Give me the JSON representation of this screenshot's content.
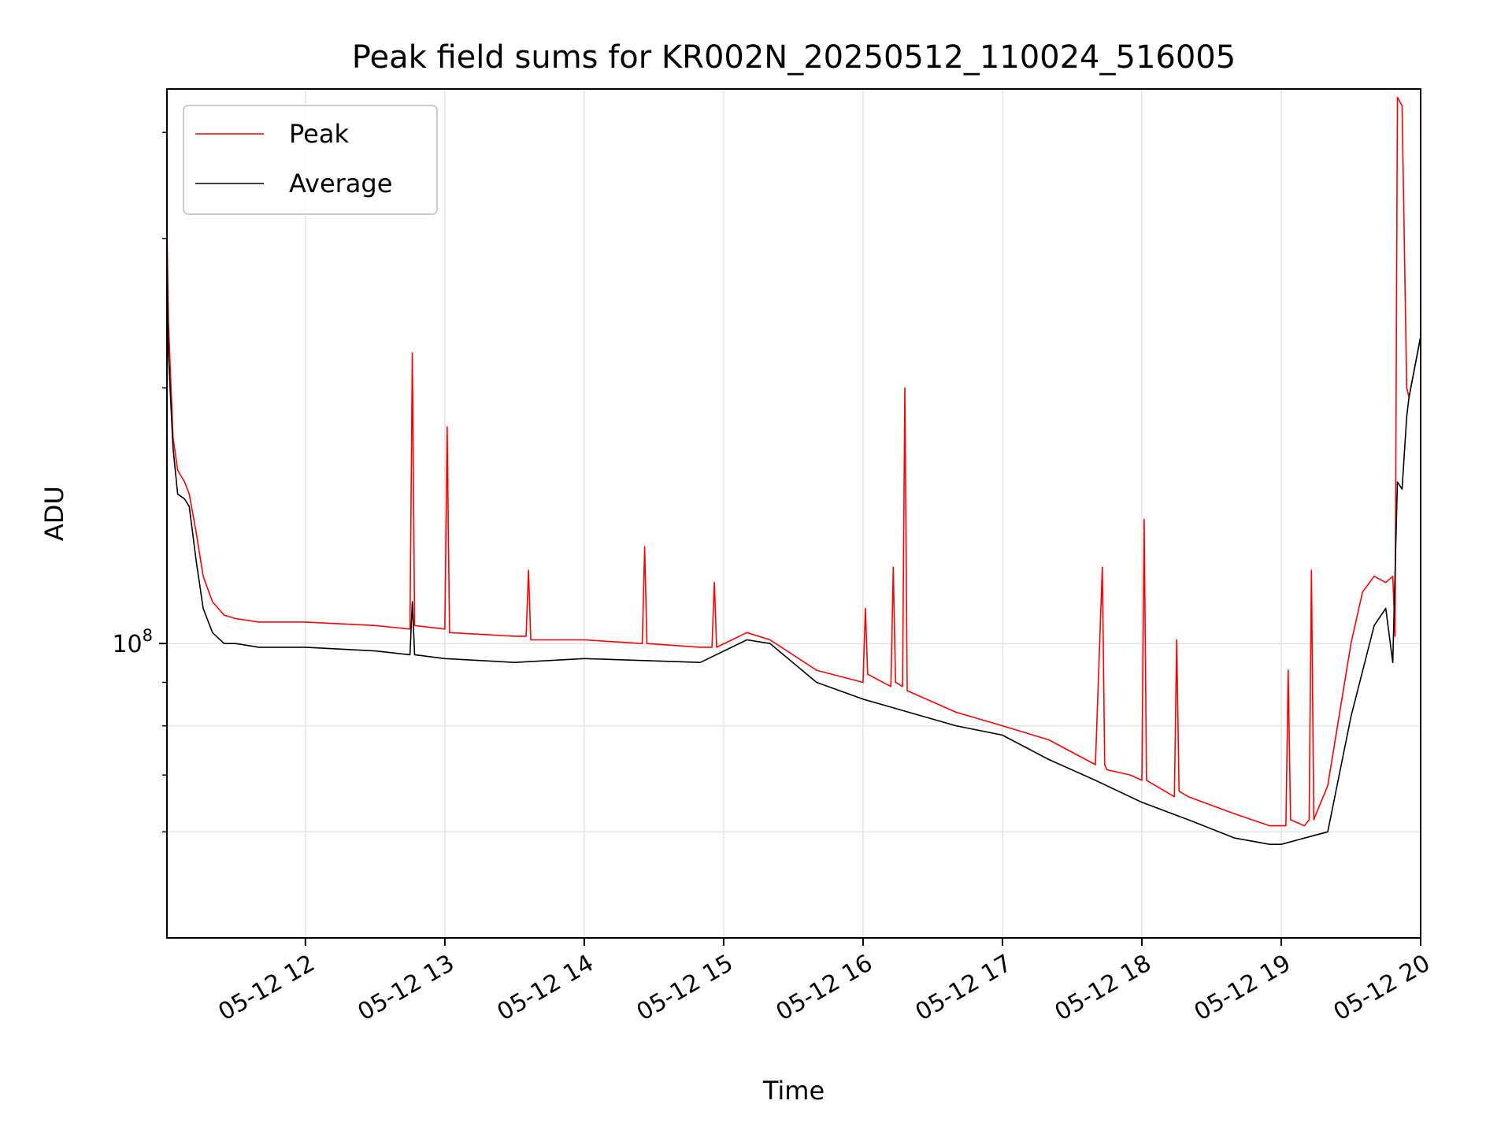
{
  "chart_data": {
    "type": "line",
    "title": "Peak field sums for KR002N_20250512_110024_516005",
    "xlabel": "Time",
    "ylabel": "ADU",
    "yscale": "log",
    "ylim": [
      45000000,
      450000000
    ],
    "xlim": [
      "2025-05-12 11:00:24",
      "2025-05-12 20:00:00"
    ],
    "x_ticks": [
      {
        "value": "2025-05-12 12:00",
        "label": "05-12 12"
      },
      {
        "value": "2025-05-12 13:00",
        "label": "05-12 13"
      },
      {
        "value": "2025-05-12 14:00",
        "label": "05-12 14"
      },
      {
        "value": "2025-05-12 15:00",
        "label": "05-12 15"
      },
      {
        "value": "2025-05-12 16:00",
        "label": "05-12 16"
      },
      {
        "value": "2025-05-12 17:00",
        "label": "05-12 17"
      },
      {
        "value": "2025-05-12 18:00",
        "label": "05-12 18"
      },
      {
        "value": "2025-05-12 19:00",
        "label": "05-12 19"
      },
      {
        "value": "2025-05-12 20:00",
        "label": "05-12 20"
      }
    ],
    "y_major_tick": {
      "value": 100000000,
      "label_base": "10",
      "label_exp": "8"
    },
    "y_minor_ticks": [
      60000000,
      70000000,
      80000000,
      90000000,
      200000000,
      300000000,
      400000000
    ],
    "y_minor_gridlines": [
      60000000,
      80000000
    ],
    "grid": true,
    "legend": "upper left",
    "series": [
      {
        "name": "Peak",
        "color": "#ff0000",
        "x": [
          "2025-05-12 11:00",
          "2025-05-12 11:01",
          "2025-05-12 11:03",
          "2025-05-12 11:05",
          "2025-05-12 11:08",
          "2025-05-12 11:10",
          "2025-05-12 11:13",
          "2025-05-12 11:16",
          "2025-05-12 11:20",
          "2025-05-12 11:25",
          "2025-05-12 11:30",
          "2025-05-12 11:40",
          "2025-05-12 12:00",
          "2025-05-12 12:30",
          "2025-05-12 12:45",
          "2025-05-12 12:46",
          "2025-05-12 12:47",
          "2025-05-12 13:00",
          "2025-05-12 13:01",
          "2025-05-12 13:02",
          "2025-05-12 13:30",
          "2025-05-12 13:35",
          "2025-05-12 13:36",
          "2025-05-12 13:37",
          "2025-05-12 14:00",
          "2025-05-12 14:25",
          "2025-05-12 14:26",
          "2025-05-12 14:27",
          "2025-05-12 14:50",
          "2025-05-12 14:55",
          "2025-05-12 14:56",
          "2025-05-12 14:57",
          "2025-05-12 15:10",
          "2025-05-12 15:20",
          "2025-05-12 15:40",
          "2025-05-12 16:00",
          "2025-05-12 16:01",
          "2025-05-12 16:02",
          "2025-05-12 16:12",
          "2025-05-12 16:13",
          "2025-05-12 16:14",
          "2025-05-12 16:17",
          "2025-05-12 16:18",
          "2025-05-12 16:19",
          "2025-05-12 16:40",
          "2025-05-12 17:00",
          "2025-05-12 17:20",
          "2025-05-12 17:40",
          "2025-05-12 17:43",
          "2025-05-12 17:44",
          "2025-05-12 17:45",
          "2025-05-12 17:55",
          "2025-05-12 18:00",
          "2025-05-12 18:01",
          "2025-05-12 18:02",
          "2025-05-12 18:14",
          "2025-05-12 18:15",
          "2025-05-12 18:16",
          "2025-05-12 18:20",
          "2025-05-12 18:40",
          "2025-05-12 18:55",
          "2025-05-12 19:00",
          "2025-05-12 19:02",
          "2025-05-12 19:03",
          "2025-05-12 19:04",
          "2025-05-12 19:10",
          "2025-05-12 19:12",
          "2025-05-12 19:13",
          "2025-05-12 19:14",
          "2025-05-12 19:15",
          "2025-05-12 19:20",
          "2025-05-12 19:30",
          "2025-05-12 19:35",
          "2025-05-12 19:40",
          "2025-05-12 19:45",
          "2025-05-12 19:48",
          "2025-05-12 19:49",
          "2025-05-12 19:50",
          "2025-05-12 19:52",
          "2025-05-12 19:54",
          "2025-05-12 19:55",
          "2025-05-12 20:00"
        ],
        "values": [
          310000000,
          240000000,
          175000000,
          160000000,
          155000000,
          150000000,
          135000000,
          120000000,
          112000000,
          108000000,
          107000000,
          106000000,
          106000000,
          105000000,
          104000000,
          220000000,
          105000000,
          104000000,
          180000000,
          103000000,
          102000000,
          102000000,
          122000000,
          101000000,
          101000000,
          100000000,
          130000000,
          100000000,
          99000000,
          99000000,
          118000000,
          99000000,
          103000000,
          101000000,
          93000000,
          90000000,
          110000000,
          92000000,
          89000000,
          123000000,
          90000000,
          89000000,
          200000000,
          88000000,
          83000000,
          80000000,
          77000000,
          72000000,
          123000000,
          72000000,
          71000000,
          70000000,
          69000000,
          140000000,
          69000000,
          66000000,
          101000000,
          67000000,
          66000000,
          63000000,
          61000000,
          61000000,
          61000000,
          93000000,
          62000000,
          61000000,
          62000000,
          122000000,
          62000000,
          63000000,
          68000000,
          100000000,
          115000000,
          120000000,
          118000000,
          120000000,
          102000000,
          440000000,
          430000000,
          200000000,
          195000000,
          230000000
        ]
      },
      {
        "name": "Average",
        "color": "#000000",
        "x": [
          "2025-05-12 11:00",
          "2025-05-12 11:01",
          "2025-05-12 11:03",
          "2025-05-12 11:05",
          "2025-05-12 11:08",
          "2025-05-12 11:10",
          "2025-05-12 11:13",
          "2025-05-12 11:16",
          "2025-05-12 11:20",
          "2025-05-12 11:25",
          "2025-05-12 11:30",
          "2025-05-12 11:40",
          "2025-05-12 12:00",
          "2025-05-12 12:30",
          "2025-05-12 12:45",
          "2025-05-12 12:46",
          "2025-05-12 12:47",
          "2025-05-12 13:00",
          "2025-05-12 13:30",
          "2025-05-12 14:00",
          "2025-05-12 14:50",
          "2025-05-12 15:10",
          "2025-05-12 15:20",
          "2025-05-12 15:40",
          "2025-05-12 16:00",
          "2025-05-12 16:40",
          "2025-05-12 17:00",
          "2025-05-12 17:20",
          "2025-05-12 17:40",
          "2025-05-12 18:00",
          "2025-05-12 18:20",
          "2025-05-12 18:40",
          "2025-05-12 18:55",
          "2025-05-12 19:00",
          "2025-05-12 19:10",
          "2025-05-12 19:20",
          "2025-05-12 19:30",
          "2025-05-12 19:40",
          "2025-05-12 19:45",
          "2025-05-12 19:48",
          "2025-05-12 19:50",
          "2025-05-12 19:52",
          "2025-05-12 19:54",
          "2025-05-12 19:55",
          "2025-05-12 20:00"
        ],
        "values": [
          290000000,
          220000000,
          170000000,
          150000000,
          148000000,
          145000000,
          125000000,
          110000000,
          103000000,
          100000000,
          100000000,
          99000000,
          99000000,
          98000000,
          97000000,
          112000000,
          97000000,
          96000000,
          95000000,
          96000000,
          95000000,
          101000000,
          100000000,
          90000000,
          86000000,
          80000000,
          78000000,
          73000000,
          69000000,
          65000000,
          62000000,
          59000000,
          58000000,
          58000000,
          59000000,
          60000000,
          82000000,
          105000000,
          110000000,
          95000000,
          155000000,
          152000000,
          185000000,
          195000000,
          230000000
        ]
      }
    ]
  }
}
